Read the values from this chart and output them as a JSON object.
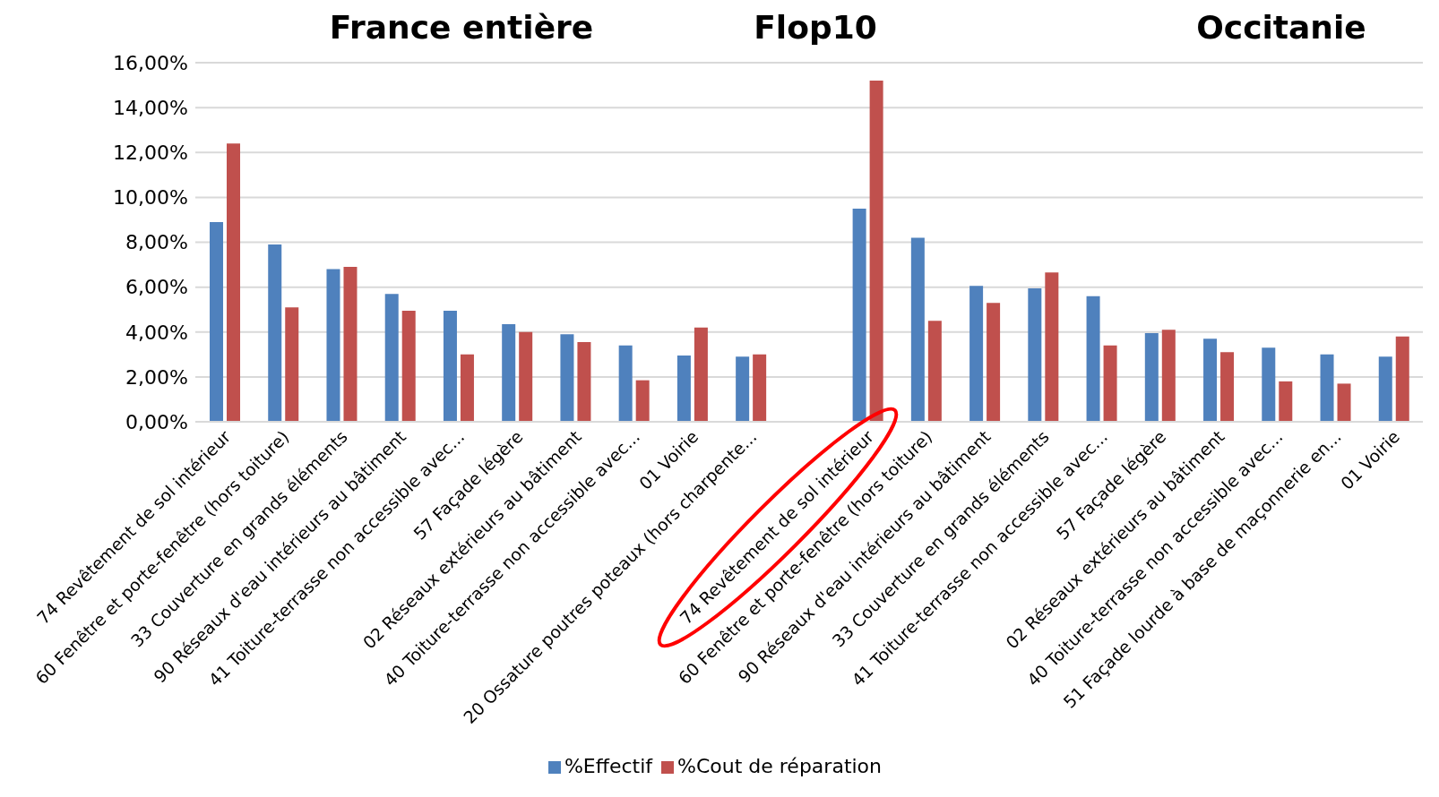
{
  "chart_data": {
    "type": "bar",
    "annotations": [
      "France entière",
      "Flop10",
      "Occitanie"
    ],
    "categories": [
      "74 Revêtement de sol intérieur",
      "60 Fenêtre et porte-fenêtre (hors toiture)",
      "33 Couverture en grands éléments",
      "90 Réseaux d'eau intérieurs au bâtiment",
      "41 Toiture-terrasse non accessible avec...",
      "57 Façade légère",
      "02 Réseaux extérieurs au bâtiment",
      "40 Toiture-terrasse non accessible avec...",
      "01 Voirie",
      "20 Ossature poutres poteaux (hors charpente...",
      null,
      "74 Revêtement de sol intérieur",
      "60 Fenêtre et porte-fenêtre (hors toiture)",
      "90 Réseaux d'eau intérieurs au bâtiment",
      "33 Couverture en grands éléments",
      "41 Toiture-terrasse non accessible avec...",
      "57 Façade légère",
      "02 Réseaux extérieurs au bâtiment",
      "40 Toiture-terrasse non accessible avec...",
      "51 Façade lourde à base de maçonnerie en...",
      "01 Voirie"
    ],
    "series": [
      {
        "name": "%Effectif",
        "color": "#4f81bd",
        "values": [
          8.9,
          7.9,
          6.8,
          5.7,
          4.95,
          4.35,
          3.9,
          3.4,
          2.95,
          2.9,
          null,
          9.5,
          8.2,
          6.05,
          5.95,
          5.6,
          3.95,
          3.7,
          3.3,
          3.0,
          2.9
        ]
      },
      {
        "name": "%Cout de réparation",
        "color": "#c0504d",
        "values": [
          12.4,
          5.1,
          6.9,
          4.95,
          3.0,
          4.0,
          3.55,
          1.85,
          4.2,
          3.0,
          null,
          15.2,
          4.5,
          5.3,
          6.65,
          3.4,
          4.1,
          3.1,
          1.8,
          1.7,
          3.8
        ]
      }
    ],
    "ylim": [
      0,
      16
    ],
    "yticks": [
      {
        "value": 0,
        "label": "0,00%"
      },
      {
        "value": 2,
        "label": "2,00%"
      },
      {
        "value": 4,
        "label": "4,00%"
      },
      {
        "value": 6,
        "label": "6,00%"
      },
      {
        "value": 8,
        "label": "8,00%"
      },
      {
        "value": 10,
        "label": "10,00%"
      },
      {
        "value": 12,
        "label": "12,00%"
      },
      {
        "value": 14,
        "label": "14,00%"
      },
      {
        "value": 16,
        "label": "16,00%"
      }
    ],
    "grid": "y",
    "legend": "bottom"
  }
}
